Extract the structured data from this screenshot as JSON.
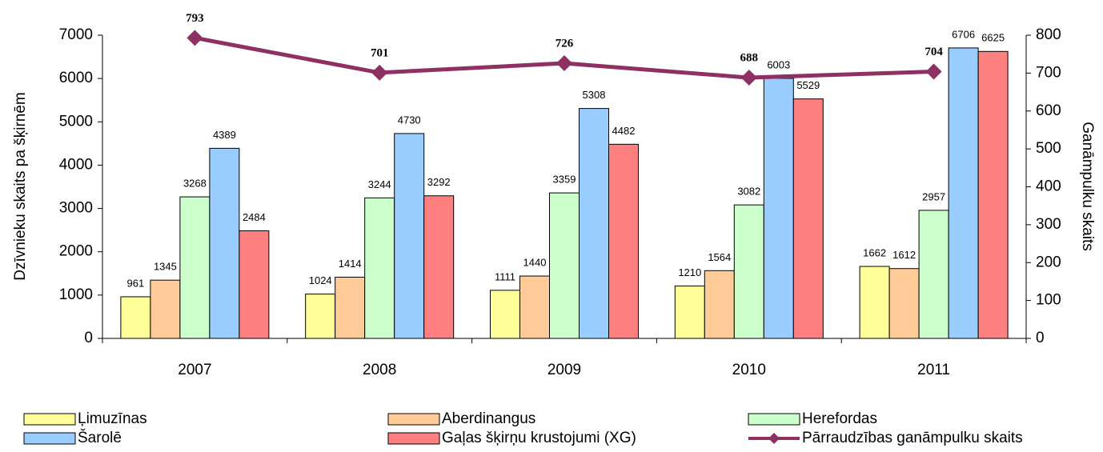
{
  "chart_data": {
    "type": "bar",
    "categories": [
      "2007",
      "2008",
      "2009",
      "2010",
      "2011"
    ],
    "ylabel": "Dzīvnieku skaits pa šķirnēm",
    "y2label": "Ganāmpulku skaits",
    "ylim": [
      0,
      7000
    ],
    "yticks": [
      0,
      1000,
      2000,
      3000,
      4000,
      5000,
      6000,
      7000
    ],
    "y2lim": [
      0,
      800
    ],
    "y2ticks": [
      0,
      100,
      200,
      300,
      400,
      500,
      600,
      700,
      800
    ],
    "grid": false,
    "legend": "bottom",
    "series": [
      {
        "name": "Ļimuzīnas",
        "color": "#ffff99",
        "values": [
          961,
          1024,
          1111,
          1210,
          1662
        ]
      },
      {
        "name": "Aberdinangus",
        "color": "#ffcc99",
        "values": [
          1345,
          1414,
          1440,
          1564,
          1612
        ]
      },
      {
        "name": "Herefordas",
        "color": "#ccffcc",
        "values": [
          3268,
          3244,
          3359,
          3082,
          2957
        ]
      },
      {
        "name": "Šarolē",
        "color": "#99ccff",
        "values": [
          4389,
          4730,
          5308,
          6003,
          6706
        ]
      },
      {
        "name": "Gaļas šķirņu krustojumi (XG)",
        "color": "#ff8080",
        "values": [
          2484,
          3292,
          4482,
          5529,
          6625
        ]
      },
      {
        "name": "Pārraudzības ganāmpulku skaits",
        "color": "#8e3062",
        "type": "line",
        "axis": "y2",
        "values": [
          793,
          701,
          726,
          688,
          704
        ]
      }
    ]
  }
}
